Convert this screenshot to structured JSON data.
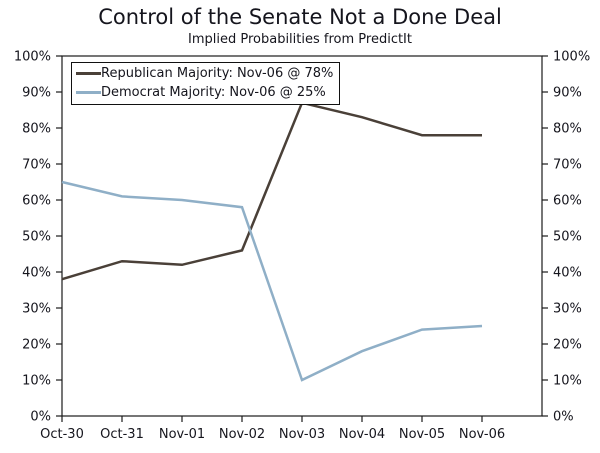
{
  "title": "Control of the Senate Not a Done Deal",
  "subtitle": "Implied Probabilities from PredictIt",
  "legend": {
    "items": [
      {
        "label": "Republican Majority: Nov-06 @ 78%",
        "color": "#4a4038"
      },
      {
        "label": "Democrat Majority: Nov-06 @ 25%",
        "color": "#8fafc7"
      }
    ]
  },
  "chart_data": {
    "type": "line",
    "title": "Control of the Senate Not a Done Deal",
    "subtitle": "Implied Probabilities from PredictIt",
    "categories": [
      "Oct-30",
      "Oct-31",
      "Nov-01",
      "Nov-02",
      "Nov-03",
      "Nov-04",
      "Nov-05",
      "Nov-06"
    ],
    "series": [
      {
        "name": "Republican Majority",
        "color": "#4a4038",
        "values": [
          38,
          43,
          42,
          46,
          87,
          83,
          78,
          78
        ]
      },
      {
        "name": "Democrat Majority",
        "color": "#8fafc7",
        "values": [
          65,
          61,
          60,
          58,
          10,
          18,
          24,
          25
        ]
      }
    ],
    "xlabel": "",
    "ylabel": "",
    "ylim": [
      0,
      100
    ],
    "ytick_step": 10,
    "ytick_suffix": "%",
    "y_axis_sides": "both",
    "grid": false,
    "legend_position": "top-left-inside",
    "axis_color": "#1a1a1a",
    "tick_label_color": "#15151d",
    "line_width": 2.5
  }
}
